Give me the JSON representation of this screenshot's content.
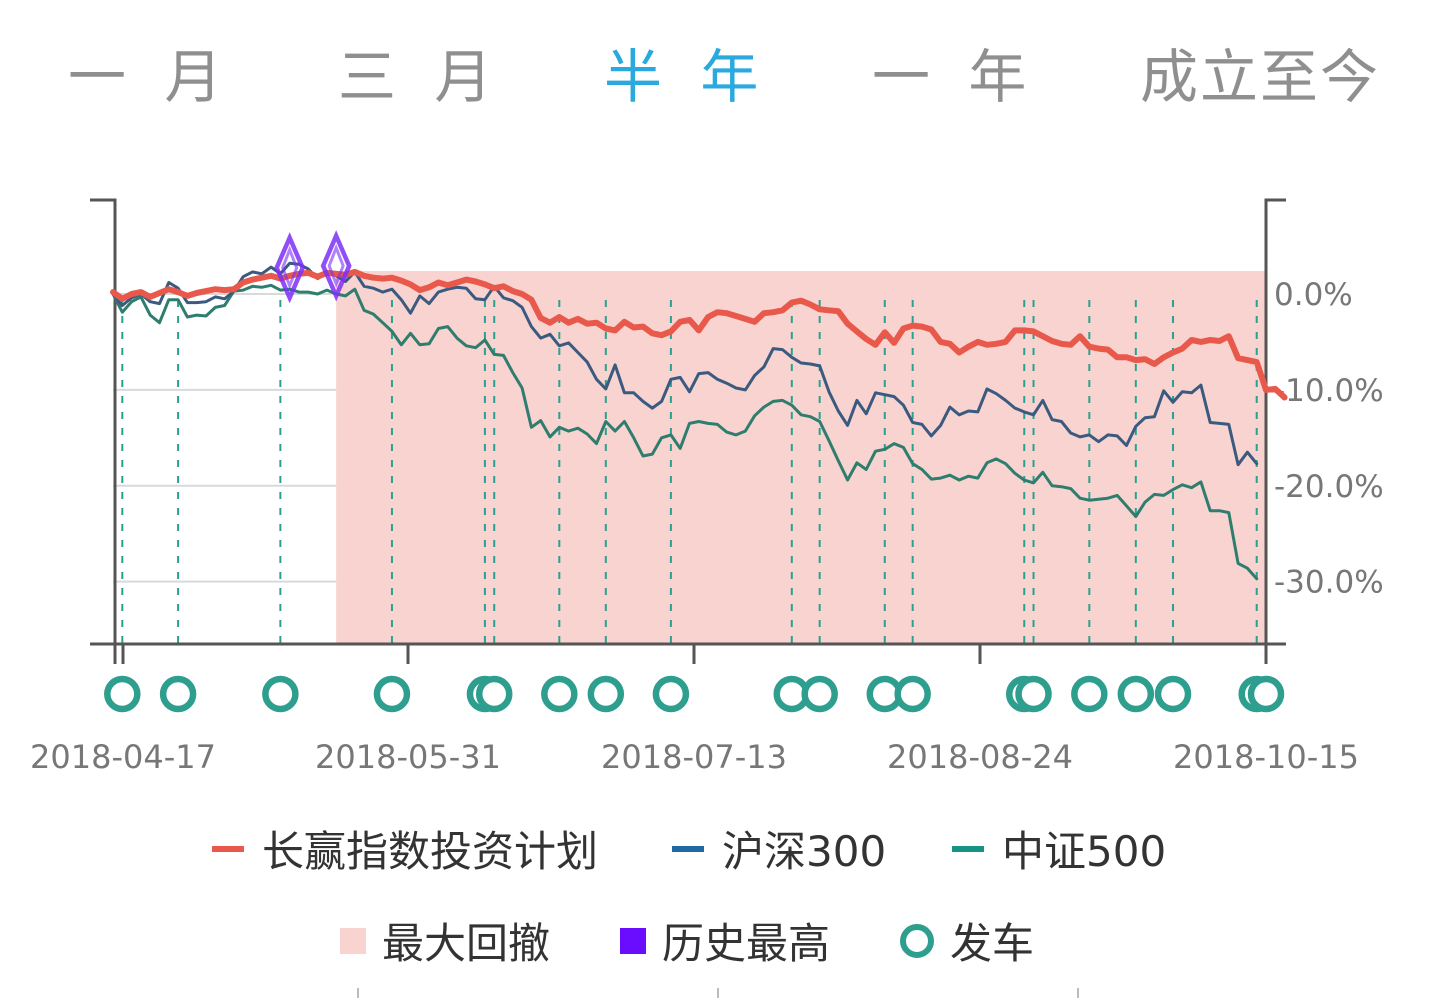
{
  "tabs": [
    {
      "label": "一 月",
      "active": false
    },
    {
      "label": "三 月",
      "active": false
    },
    {
      "label": "半 年",
      "active": true
    },
    {
      "label": "一 年",
      "active": false
    },
    {
      "label": "成立至今",
      "active": false
    }
  ],
  "colors": {
    "active_tab": "#2aa9de",
    "inactive_tab": "#8f8f8f",
    "plan": "#e8594b",
    "hs300": "#3a5a80",
    "zz500": "#2e7d6e",
    "drawdown": "#f9d3cf",
    "high": "#7b2ff7",
    "depart": "#2e9f8e"
  },
  "chart_data": {
    "type": "line",
    "x_ticks": [
      "2018-04-17",
      "2018-05-31",
      "2018-07-13",
      "2018-08-24",
      "2018-10-15"
    ],
    "y_ticks": [
      "0.0%",
      "-10.0%",
      "-20.0%",
      "-30.0%"
    ],
    "ylim": [
      -36.5,
      9.8
    ],
    "grid": true,
    "legend_position": "bottom",
    "n_points": 125,
    "series": [
      {
        "name": "长赢指数投资计划",
        "color_key": "plan",
        "values": [
          0.2,
          -0.5,
          0.0,
          0.2,
          -0.3,
          0.1,
          0.5,
          0.2,
          -0.2,
          0.1,
          0.3,
          0.5,
          0.4,
          0.5,
          1.2,
          1.5,
          1.7,
          1.9,
          1.6,
          1.9,
          2.1,
          2.2,
          1.8,
          2.2,
          2.1,
          2.0,
          2.3,
          1.9,
          1.7,
          1.6,
          1.7,
          1.4,
          1.0,
          0.4,
          0.7,
          1.2,
          0.9,
          1.2,
          1.5,
          1.3,
          1.0,
          0.6,
          0.8,
          0.3,
          0.0,
          -0.6,
          -2.5,
          -3.0,
          -2.4,
          -3.0,
          -2.6,
          -3.1,
          -3.0,
          -3.6,
          -3.8,
          -2.9,
          -3.5,
          -3.4,
          -4.1,
          -4.3,
          -3.9,
          -2.9,
          -2.7,
          -3.8,
          -2.4,
          -1.9,
          -2.0,
          -2.3,
          -2.6,
          -2.9,
          -2.0,
          -1.9,
          -1.7,
          -0.9,
          -0.7,
          -1.1,
          -1.6,
          -1.7,
          -1.8,
          -3.1,
          -3.9,
          -4.7,
          -5.3,
          -4.0,
          -5.1,
          -3.6,
          -3.3,
          -3.4,
          -3.7,
          -5.0,
          -5.2,
          -6.1,
          -5.5,
          -5.0,
          -5.3,
          -5.2,
          -5.0,
          -3.8,
          -3.8,
          -3.9,
          -4.4,
          -4.9,
          -5.2,
          -5.3,
          -4.4,
          -5.5,
          -5.7,
          -5.8,
          -6.6,
          -6.6,
          -6.9,
          -6.8,
          -7.3,
          -6.6,
          -6.1,
          -5.7,
          -4.8,
          -5.0,
          -4.8,
          -4.9,
          -4.4,
          -6.7,
          -6.9,
          -7.1,
          -10.0,
          -9.9,
          -10.8
        ]
      },
      {
        "name": "沪深300",
        "color_key": "hs300",
        "values": [
          0.0,
          -1.2,
          -0.4,
          0.0,
          -0.8,
          -1.0,
          1.2,
          0.6,
          -0.9,
          -0.9,
          -0.8,
          -0.3,
          -0.5,
          0.3,
          1.8,
          2.3,
          2.1,
          2.8,
          2.1,
          3.2,
          3.1,
          2.6,
          1.6,
          2.3,
          1.9,
          1.3,
          2.3,
          0.8,
          0.6,
          0.2,
          0.5,
          -0.6,
          -2.0,
          -0.2,
          -1.0,
          0.2,
          0.5,
          0.7,
          0.6,
          -0.5,
          -0.6,
          0.8,
          -0.4,
          -0.7,
          -1.4,
          -3.4,
          -4.6,
          -4.2,
          -5.4,
          -5.1,
          -6.1,
          -7.1,
          -8.9,
          -9.9,
          -7.4,
          -10.3,
          -10.3,
          -11.2,
          -11.9,
          -11.2,
          -8.9,
          -8.7,
          -10.2,
          -8.3,
          -8.2,
          -8.9,
          -9.3,
          -9.8,
          -10.0,
          -8.5,
          -7.6,
          -5.7,
          -5.8,
          -6.6,
          -7.2,
          -7.3,
          -7.5,
          -10.2,
          -12.2,
          -13.7,
          -11.1,
          -12.5,
          -10.3,
          -10.5,
          -10.7,
          -11.6,
          -13.4,
          -13.6,
          -14.8,
          -13.7,
          -11.8,
          -12.6,
          -12.2,
          -12.3,
          -9.9,
          -10.4,
          -11.1,
          -11.9,
          -12.3,
          -12.6,
          -11.1,
          -13.1,
          -13.3,
          -14.5,
          -14.9,
          -14.7,
          -15.4,
          -14.7,
          -14.8,
          -15.8,
          -13.8,
          -12.9,
          -12.8,
          -10.1,
          -11.3,
          -10.2,
          -10.3,
          -9.5,
          -13.4,
          -13.5,
          -13.6,
          -17.8,
          -16.5,
          -17.7
        ]
      },
      {
        "name": "中证500",
        "color_key": "zz500",
        "values": [
          0.0,
          -1.9,
          -0.8,
          -0.3,
          -2.2,
          -3.0,
          -0.6,
          -0.6,
          -2.4,
          -2.2,
          -2.3,
          -1.4,
          -1.2,
          0.3,
          0.4,
          0.8,
          0.7,
          0.9,
          0.4,
          0.5,
          0.2,
          0.2,
          0.0,
          0.4,
          0.0,
          -0.2,
          0.5,
          -1.7,
          -2.1,
          -3.0,
          -3.9,
          -5.3,
          -4.1,
          -5.3,
          -5.2,
          -3.6,
          -3.4,
          -4.6,
          -5.4,
          -5.6,
          -4.8,
          -6.3,
          -6.4,
          -8.2,
          -9.8,
          -13.9,
          -13.2,
          -14.9,
          -13.9,
          -14.3,
          -14.0,
          -14.6,
          -15.6,
          -13.3,
          -14.3,
          -13.3,
          -15.0,
          -16.9,
          -16.7,
          -15.0,
          -14.7,
          -16.1,
          -13.5,
          -13.3,
          -13.5,
          -13.6,
          -14.4,
          -14.7,
          -14.3,
          -12.7,
          -11.8,
          -11.2,
          -11.1,
          -11.6,
          -12.6,
          -12.8,
          -13.3,
          -15.3,
          -17.4,
          -19.4,
          -17.6,
          -18.3,
          -16.4,
          -16.2,
          -15.6,
          -16.0,
          -17.7,
          -18.3,
          -19.3,
          -19.2,
          -18.9,
          -19.4,
          -19.0,
          -19.2,
          -17.6,
          -17.2,
          -17.7,
          -18.7,
          -19.4,
          -19.7,
          -18.6,
          -20.0,
          -20.1,
          -20.3,
          -21.3,
          -21.5,
          -21.4,
          -21.3,
          -21.0,
          -22.1,
          -23.2,
          -21.7,
          -20.9,
          -21.0,
          -20.4,
          -19.9,
          -20.2,
          -19.6,
          -22.6,
          -22.6,
          -22.8,
          -28.1,
          -28.6,
          -29.7
        ]
      }
    ],
    "max_drawdown": {
      "label": "最大回撤",
      "from_index": 24,
      "to_index": 124
    },
    "all_time_highs": {
      "label": "历史最高",
      "indices": [
        19,
        24
      ]
    },
    "departures": {
      "label": "发车",
      "indices": [
        1,
        7,
        18,
        30,
        40,
        41,
        48,
        53,
        60,
        73,
        76,
        83,
        86,
        98,
        99,
        105,
        110,
        114,
        123,
        124
      ]
    }
  }
}
